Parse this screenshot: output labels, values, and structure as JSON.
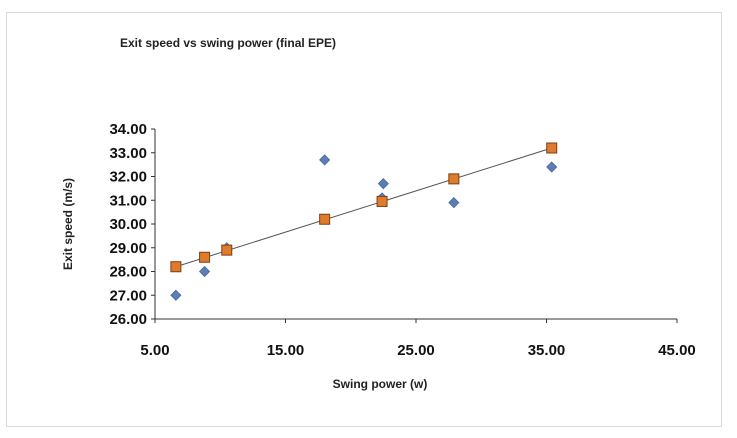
{
  "chart_data": {
    "type": "scatter",
    "title": "Exit speed vs swing power (final EPE)",
    "xlabel": "Swing power (w)",
    "ylabel": "Exit speed (m/s)",
    "xlim": [
      5,
      45
    ],
    "ylim": [
      26,
      34
    ],
    "x_ticks": [
      "5.00",
      "15.00",
      "25.00",
      "35.00",
      "45.00"
    ],
    "y_ticks": [
      "26.00",
      "27.00",
      "28.00",
      "29.00",
      "30.00",
      "31.00",
      "32.00",
      "33.00",
      "34.00"
    ],
    "grid": false,
    "legend": "none",
    "series": [
      {
        "marker": "diamond",
        "color": "#5b7fb0",
        "points": [
          [
            6.6,
            27.0
          ],
          [
            8.8,
            28.0
          ],
          [
            10.5,
            29.0
          ],
          [
            18.0,
            32.7
          ],
          [
            22.5,
            31.7
          ],
          [
            22.4,
            31.1
          ],
          [
            27.9,
            30.9
          ],
          [
            35.4,
            32.4
          ]
        ]
      },
      {
        "marker": "square",
        "color": "#e07b2e",
        "line": true,
        "points": [
          [
            6.6,
            28.2
          ],
          [
            8.8,
            28.6
          ],
          [
            10.5,
            28.9
          ],
          [
            18.0,
            30.2
          ],
          [
            22.4,
            30.95
          ],
          [
            27.9,
            31.9
          ],
          [
            35.4,
            33.2
          ]
        ]
      }
    ]
  }
}
